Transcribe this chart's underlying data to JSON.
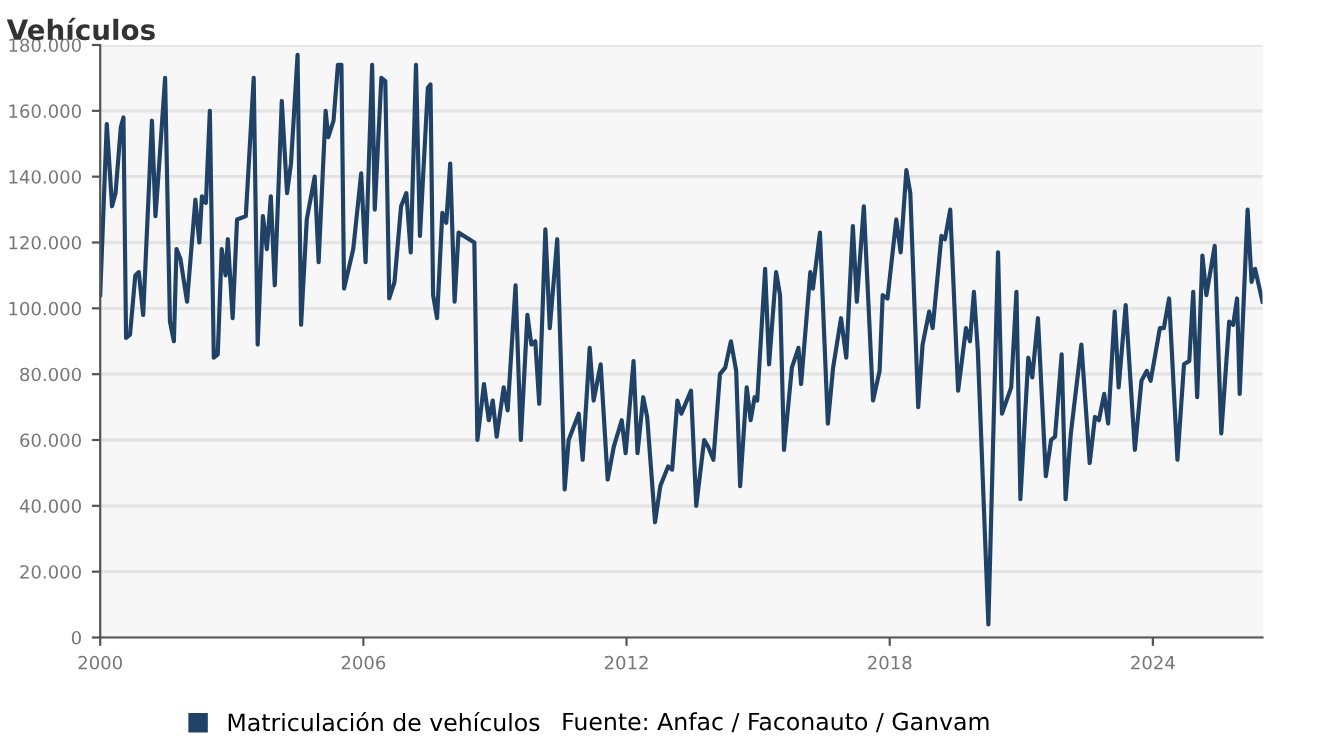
{
  "chart_data": {
    "type": "line",
    "title": "Vehículos",
    "series": [
      {
        "name": "Matriculación de vehículos",
        "color": "#1f4266",
        "x": [
          2000.0,
          2000.15,
          2000.27,
          2000.35,
          2000.47,
          2000.53,
          2000.59,
          2000.68,
          2000.8,
          2000.88,
          2000.98,
          2001.18,
          2001.26,
          2001.33,
          2001.48,
          2001.59,
          2001.68,
          2001.74,
          2001.83,
          2001.98,
          2002.17,
          2002.26,
          2002.32,
          2002.41,
          2002.5,
          2002.59,
          2002.68,
          2002.77,
          2002.86,
          2002.91,
          2003.02,
          2003.12,
          2003.32,
          2003.5,
          2003.59,
          2003.71,
          2003.8,
          2003.89,
          2003.98,
          2004.14,
          2004.26,
          2004.35,
          2004.5,
          2004.58,
          2004.71,
          2004.89,
          2004.98,
          2005.14,
          2005.2,
          2005.32,
          2005.42,
          2005.5,
          2005.56,
          2005.77,
          2005.95,
          2006.05,
          2006.2,
          2006.26,
          2006.41,
          2006.5,
          2006.59,
          2006.71,
          2006.86,
          2006.98,
          2007.08,
          2007.2,
          2007.29,
          2007.47,
          2007.53,
          2007.59,
          2007.68,
          2007.8,
          2007.89,
          2007.98,
          2008.08,
          2008.17,
          2008.53,
          2008.6,
          2008.75,
          2008.86,
          2008.95,
          2009.04,
          2009.2,
          2009.29,
          2009.47,
          2009.59,
          2009.74,
          2009.83,
          2009.92,
          2010.01,
          2010.15,
          2010.25,
          2010.42,
          2010.59,
          2010.68,
          2010.91,
          2011.0,
          2011.16,
          2011.25,
          2011.41,
          2011.57,
          2011.71,
          2011.89,
          2011.98,
          2012.16,
          2012.25,
          2012.38,
          2012.47,
          2012.65,
          2012.77,
          2012.95,
          2013.04,
          2013.16,
          2013.25,
          2013.47,
          2013.59,
          2013.77,
          2013.86,
          2013.98,
          2014.13,
          2014.25,
          2014.38,
          2014.5,
          2014.59,
          2014.74,
          2014.83,
          2014.92,
          2014.98,
          2015.16,
          2015.25,
          2015.41,
          2015.5,
          2015.59,
          2015.77,
          2015.92,
          2015.98,
          2016.19,
          2016.25,
          2016.41,
          2016.59,
          2016.71,
          2016.89,
          2017.01,
          2017.16,
          2017.25,
          2017.41,
          2017.62,
          2017.77,
          2017.84,
          2017.95,
          2018.15,
          2018.25,
          2018.38,
          2018.47,
          2018.65,
          2018.75,
          2018.9,
          2018.98,
          2019.18,
          2019.26,
          2019.38,
          2019.56,
          2019.74,
          2019.83,
          2019.92,
          2020.01,
          2020.25,
          2020.47,
          2020.56,
          2020.77,
          2020.89,
          2020.98,
          2021.16,
          2021.25,
          2021.38,
          2021.56,
          2021.68,
          2021.77,
          2021.92,
          2022.01,
          2022.13,
          2022.37,
          2022.56,
          2022.68,
          2022.77,
          2022.89,
          2022.98,
          2023.13,
          2023.22,
          2023.38,
          2023.59,
          2023.74,
          2023.86,
          2023.95,
          2024.16,
          2024.25,
          2024.37,
          2024.56,
          2024.71,
          2024.83,
          2024.92,
          2025.01,
          2025.13,
          2025.22,
          2025.41,
          2025.56,
          2025.74,
          2025.83,
          2025.92,
          2025.98,
          2026.16,
          2026.25,
          2026.33,
          2026.5
        ],
        "values": [
          104000,
          156000,
          131000,
          135000,
          155000,
          158000,
          91000,
          92000,
          110000,
          111000,
          98000,
          157000,
          128000,
          141000,
          170000,
          96000,
          90000,
          118000,
          115000,
          102000,
          133000,
          120000,
          134000,
          132000,
          160000,
          85000,
          86000,
          118000,
          110000,
          121000,
          97000,
          127000,
          128000,
          170000,
          89000,
          128000,
          118000,
          134000,
          107000,
          163000,
          135000,
          144000,
          177000,
          95000,
          127000,
          140000,
          114000,
          160000,
          152000,
          157000,
          174000,
          174000,
          106000,
          118000,
          141000,
          114000,
          174000,
          130000,
          170000,
          169000,
          103000,
          108000,
          131000,
          135000,
          117000,
          174000,
          122000,
          167000,
          168000,
          104000,
          97000,
          129000,
          126000,
          144000,
          102000,
          123000,
          120000,
          60000,
          77000,
          66000,
          72000,
          61000,
          76000,
          69000,
          107000,
          60000,
          98000,
          89000,
          90000,
          71000,
          124000,
          94000,
          121000,
          45000,
          60000,
          68000,
          54000,
          88000,
          72000,
          83000,
          48000,
          58000,
          66000,
          56000,
          84000,
          56000,
          73000,
          67000,
          35000,
          46000,
          52000,
          51000,
          72000,
          68000,
          75000,
          40000,
          60000,
          58000,
          54000,
          80000,
          82000,
          90000,
          81000,
          46000,
          76000,
          66000,
          73000,
          72000,
          112000,
          83000,
          111000,
          104000,
          57000,
          82000,
          88000,
          77000,
          111000,
          106000,
          123000,
          65000,
          82000,
          97000,
          85000,
          125000,
          102000,
          131000,
          72000,
          81000,
          104000,
          103000,
          127000,
          117000,
          142000,
          135000,
          70000,
          89000,
          99000,
          94000,
          122000,
          121000,
          130000,
          75000,
          94000,
          90000,
          105000,
          87000,
          4000,
          117000,
          68000,
          76000,
          105000,
          42000,
          85000,
          79000,
          97000,
          49000,
          60000,
          61000,
          86000,
          42000,
          62000,
          89000,
          53000,
          67000,
          66000,
          74000,
          65000,
          99000,
          76000,
          101000,
          57000,
          78000,
          81000,
          78000,
          94000,
          94000,
          103000,
          54000,
          83000,
          84000,
          105000,
          73000,
          116000,
          104000,
          119000,
          62000,
          96000,
          95000,
          103000,
          74000,
          130000,
          108000,
          112000,
          102000
        ]
      }
    ],
    "xlim": [
      2000,
      2026.5
    ],
    "xticks": [
      2000,
      2006,
      2012,
      2018,
      2024
    ],
    "ylim": [
      0,
      180000
    ],
    "yticks": [
      0,
      {
        "value": 20000,
        "label": "20.000"
      },
      {
        "value": 40000,
        "label": "40.000"
      },
      {
        "value": 60000,
        "label": "60.000"
      },
      {
        "value": 80000,
        "label": "80.000"
      },
      {
        "value": 100000,
        "label": "100.000"
      },
      {
        "value": 120000,
        "label": "120.000"
      },
      {
        "value": 140000,
        "label": "140.000"
      },
      {
        "value": 160000,
        "label": "160.000"
      },
      {
        "value": 180000,
        "label": "180.000"
      }
    ],
    "grid": "y",
    "legend": "bottom",
    "marker": "none",
    "line_style": "solid",
    "annotations": [
      "Fuente: Anfac / Faconauto / Ganvam"
    ]
  }
}
